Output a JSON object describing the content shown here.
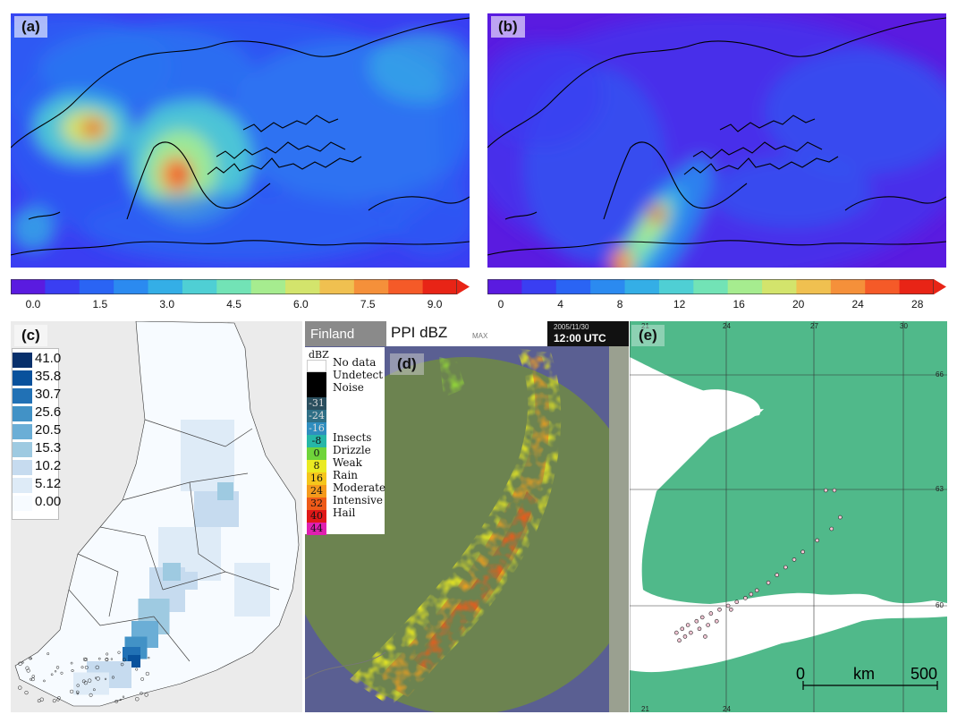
{
  "panels": {
    "a": {
      "label": "(a)"
    },
    "b": {
      "label": "(b)"
    },
    "c": {
      "label": "(c)"
    },
    "d": {
      "label": "(d)"
    },
    "e": {
      "label": "(e)"
    }
  },
  "colors": {
    "cmap": [
      "#5a1be0",
      "#3a3ef2",
      "#2a64f4",
      "#2b8af0",
      "#34aee6",
      "#4fcfd4",
      "#72e3b6",
      "#a6ec8f",
      "#d3e46c",
      "#f0c050",
      "#f5903a",
      "#f55a28",
      "#e82416"
    ],
    "blues": [
      "#f7fbff",
      "#deebf7",
      "#c6dbef",
      "#9ecae1",
      "#6baed6",
      "#4292c6",
      "#2171b5",
      "#08519c",
      "#08306b"
    ],
    "land_green": "#50b98a",
    "radar_bg": "#6f8a4e",
    "radar_sea": "#5a5f92"
  },
  "chart_data": [
    {
      "type": "heatmap",
      "panel": "a",
      "colorbar_ticks": [
        "0.0",
        "1.5",
        "3.0",
        "4.5",
        "6.0",
        "7.5",
        "9.0"
      ],
      "range": [
        0,
        10
      ]
    },
    {
      "type": "heatmap",
      "panel": "b",
      "colorbar_ticks": [
        "0",
        "4",
        "8",
        "12",
        "16",
        "20",
        "24",
        "28"
      ],
      "range": [
        0,
        30
      ]
    },
    {
      "type": "heatmap",
      "panel": "c",
      "legend_values": [
        "41.0",
        "35.8",
        "30.7",
        "25.6",
        "20.5",
        "15.3",
        "10.2",
        "5.12",
        "0.00"
      ]
    },
    {
      "type": "heatmap",
      "panel": "d",
      "header": {
        "region": "Finland",
        "product": "PPI dBZ",
        "mode": "MAX",
        "date": "2005/11/30",
        "time": "12:00 UTC"
      },
      "legend_title": "dBZ",
      "legend": [
        {
          "value": "",
          "label": "No data",
          "color": "#ffffff"
        },
        {
          "value": "",
          "label": "Undetect",
          "color": "#000000"
        },
        {
          "value": "",
          "label": "Noise",
          "color": "#000000"
        },
        {
          "value": "-31",
          "label": "",
          "color": "#2a4e5e"
        },
        {
          "value": "-24",
          "label": "",
          "color": "#2e6f86"
        },
        {
          "value": "-16",
          "label": "",
          "color": "#2f8ebf"
        },
        {
          "value": "-8",
          "label": "Insects",
          "color": "#26b7a7"
        },
        {
          "value": "0",
          "label": "Drizzle",
          "color": "#6fd43a"
        },
        {
          "value": "8",
          "label": "Weak",
          "color": "#eaea22"
        },
        {
          "value": "16",
          "label": "Rain",
          "color": "#f5c61c"
        },
        {
          "value": "24",
          "label": "Moderate",
          "color": "#f59a1c"
        },
        {
          "value": "32",
          "label": "Intensive",
          "color": "#ee5a18"
        },
        {
          "value": "40",
          "label": "Hail",
          "color": "#e01818"
        },
        {
          "value": "44",
          "label": "",
          "color": "#e020b0"
        }
      ]
    },
    {
      "type": "scatter",
      "panel": "e",
      "lon_labels": [
        "21",
        "24",
        "27",
        "30"
      ],
      "lat_labels": [
        "66",
        "63",
        "60"
      ],
      "scalebar": {
        "start": "0",
        "unit": "km",
        "end": "500"
      },
      "points": [
        [
          24.9,
          60.4
        ],
        [
          24.5,
          60.2
        ],
        [
          24.2,
          60.1
        ],
        [
          23.9,
          60.0
        ],
        [
          23.6,
          59.9
        ],
        [
          23.3,
          59.8
        ],
        [
          23.0,
          59.7
        ],
        [
          22.8,
          59.6
        ],
        [
          22.5,
          59.5
        ],
        [
          22.3,
          59.4
        ],
        [
          22.1,
          59.3
        ],
        [
          25.3,
          60.6
        ],
        [
          25.6,
          60.8
        ],
        [
          25.9,
          61.0
        ],
        [
          26.2,
          61.2
        ],
        [
          26.5,
          61.4
        ],
        [
          27.0,
          61.7
        ],
        [
          27.5,
          62.0
        ],
        [
          27.8,
          62.3
        ],
        [
          27.3,
          63.0
        ],
        [
          27.6,
          63.0
        ],
        [
          23.5,
          59.6
        ],
        [
          23.2,
          59.5
        ],
        [
          22.9,
          59.4
        ],
        [
          22.6,
          59.3
        ],
        [
          22.4,
          59.2
        ],
        [
          22.2,
          59.1
        ],
        [
          23.1,
          59.2
        ],
        [
          24.7,
          60.3
        ],
        [
          24.0,
          59.9
        ]
      ]
    }
  ]
}
